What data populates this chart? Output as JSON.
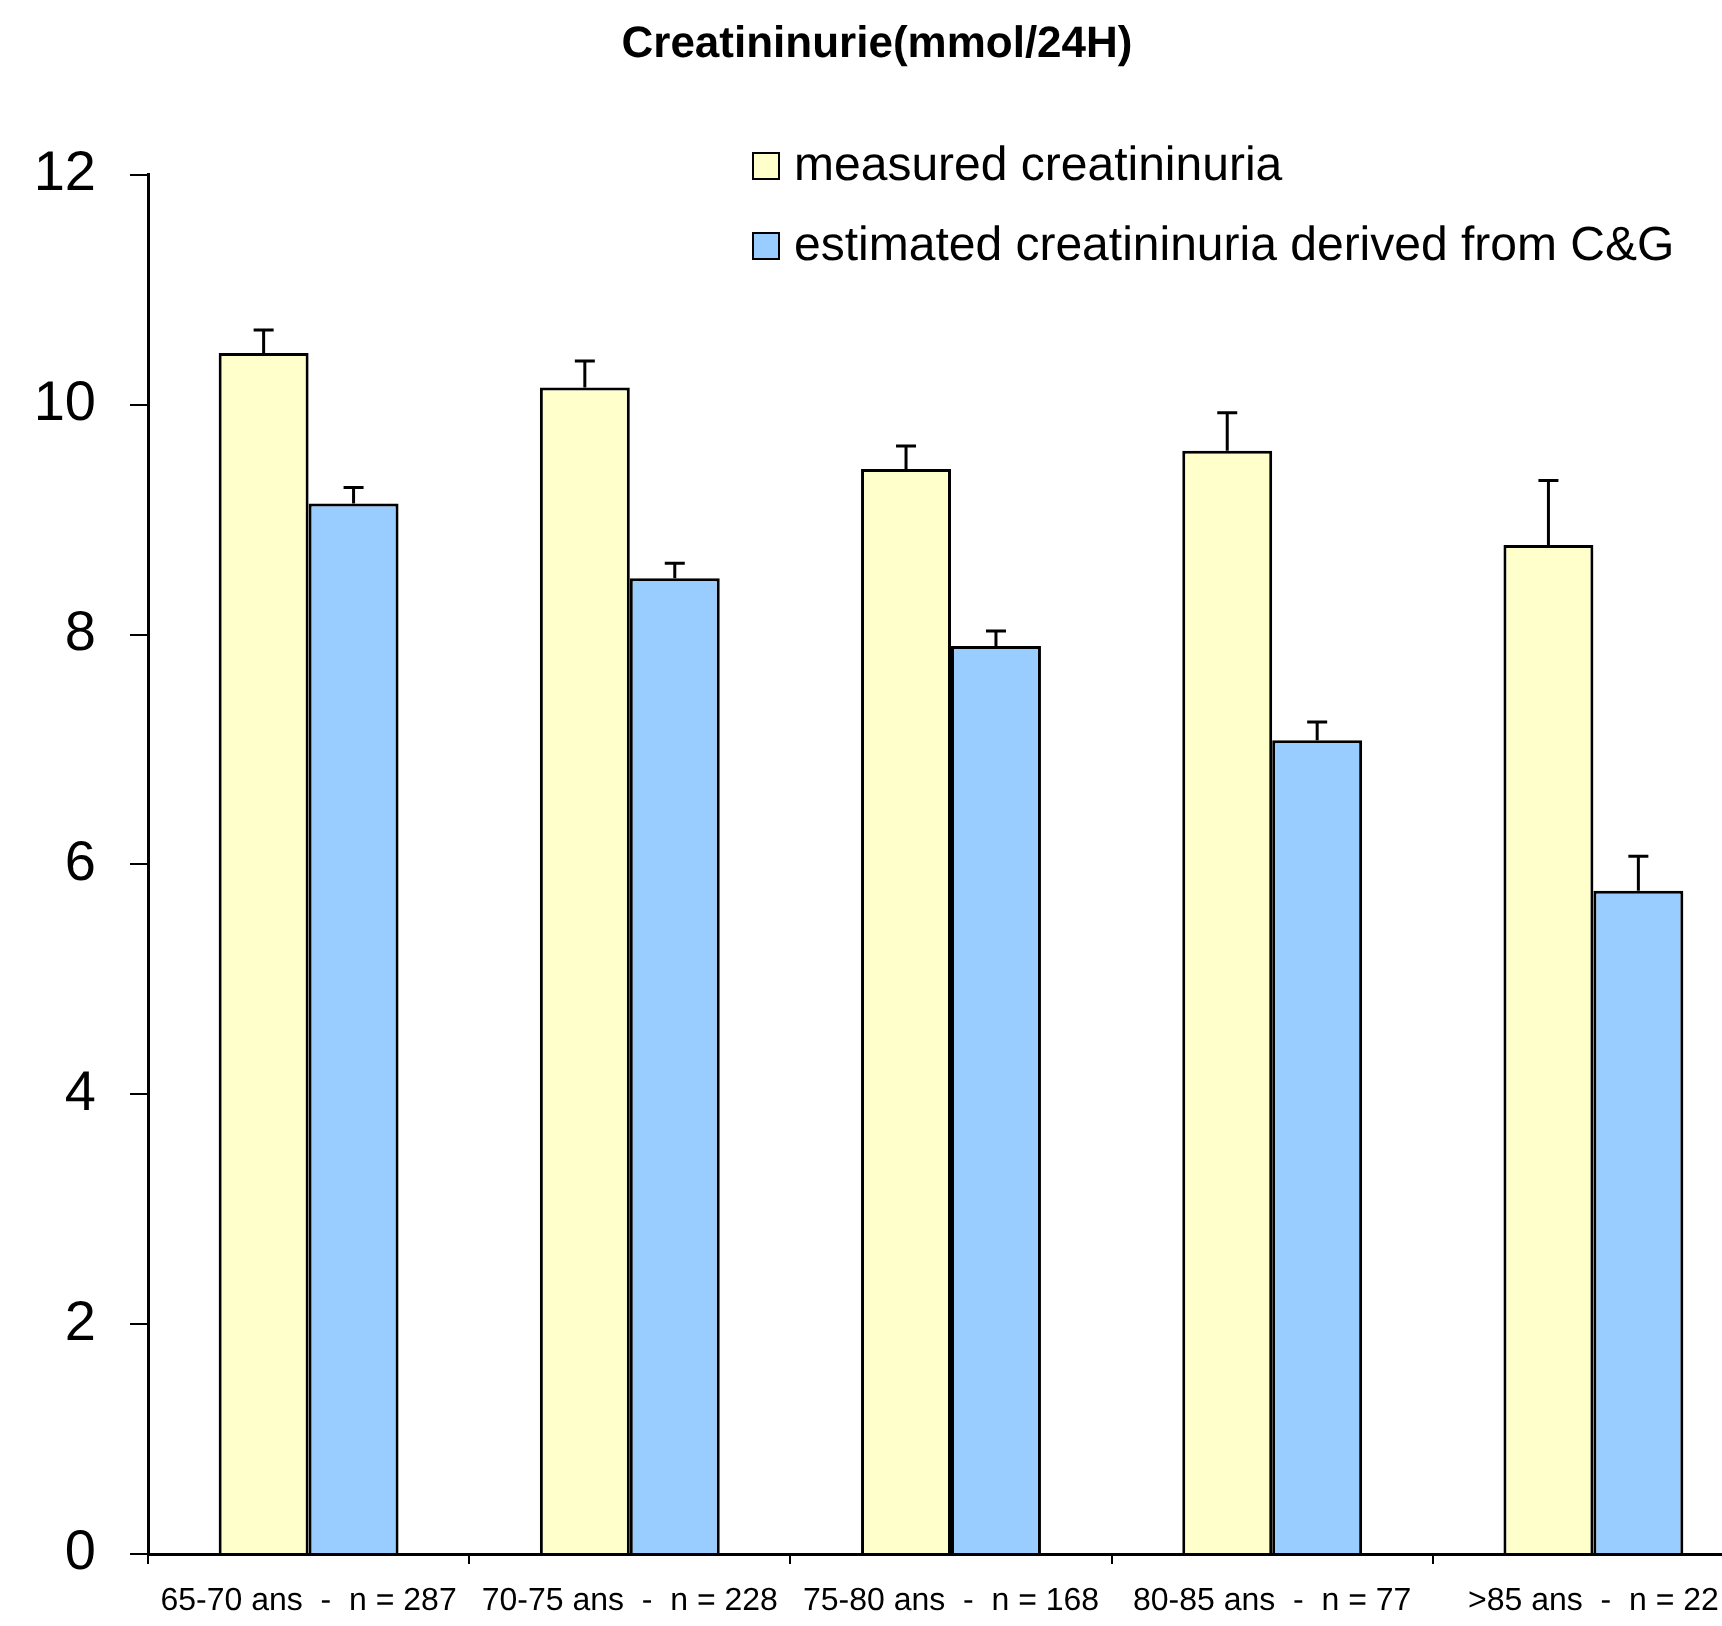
{
  "chart_data": {
    "type": "bar",
    "title": "Creatininurie(mmol/24H)",
    "categories": [
      "65-70 ans  -  n = 287",
      "70-75 ans  -  n = 228",
      "75-80 ans  -  n = 168",
      "80-85 ans  -  n = 77",
      ">85 ans  -  n = 22"
    ],
    "series": [
      {
        "name": "measured creatininuria",
        "color": "#ffffcc",
        "values": [
          10.45,
          10.15,
          9.44,
          9.6,
          8.78
        ],
        "errors": [
          [
            10.45,
            10.65
          ],
          [
            10.15,
            10.38
          ],
          [
            9.44,
            9.64
          ],
          [
            9.6,
            9.93
          ],
          [
            8.78,
            9.34
          ]
        ]
      },
      {
        "name": "estimated creatininuria derived from C&G",
        "color": "#99ccff",
        "values": [
          9.14,
          8.49,
          7.9,
          7.08,
          5.77
        ],
        "errors": [
          [
            9.14,
            9.28
          ],
          [
            8.49,
            8.62
          ],
          [
            7.9,
            8.03
          ],
          [
            7.08,
            7.24
          ],
          [
            5.77,
            6.07
          ]
        ]
      }
    ],
    "ylim": [
      0,
      12
    ],
    "yticks": [
      0,
      2,
      4,
      6,
      8,
      10,
      12
    ],
    "grid": false,
    "legend": "top right"
  }
}
